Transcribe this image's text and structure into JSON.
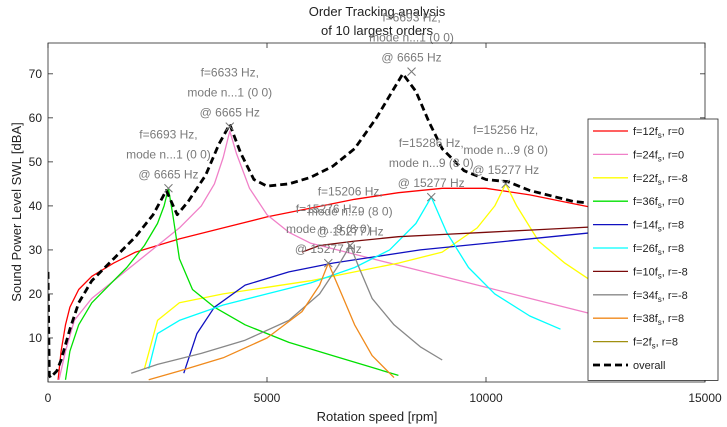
{
  "chart_data": {
    "type": "line",
    "title_lines": [
      "Order Tracking analysis",
      "of 10 largest orders"
    ],
    "xlabel": "Rotation speed [rpm]",
    "ylabel": "Sound Power Level SWL [dBA]",
    "xlim": [
      0,
      15000
    ],
    "ylim": [
      0,
      77
    ],
    "xticks": [
      0,
      5000,
      10000,
      15000
    ],
    "yticks": [
      10,
      20,
      30,
      40,
      50,
      60,
      70
    ],
    "xtick_labels": [
      "0",
      "5000",
      "10000",
      "15000"
    ],
    "ytick_labels": [
      "10",
      "20",
      "30",
      "40",
      "50",
      "60",
      "70"
    ],
    "legend_position": "right",
    "series": [
      {
        "name": "f=12f_s, r=0",
        "label_main": "f=12f",
        "label_sub": "s",
        "label_tail": ", r=0",
        "color": "#ff0000",
        "x": [
          230,
          300,
          400,
          500,
          700,
          1000,
          1500,
          2000,
          3000,
          4000,
          5000,
          6000,
          7000,
          8000,
          9000,
          10000,
          11000,
          12000,
          13000,
          14000,
          15000
        ],
        "y": [
          0.5,
          7,
          13,
          17,
          21,
          24,
          27,
          29.5,
          32.5,
          35,
          37.5,
          39.5,
          41.5,
          43,
          44,
          44,
          42.5,
          40.5,
          38.5,
          37.5,
          37
        ]
      },
      {
        "name": "f=24f_s, r=0",
        "label_main": "f=24f",
        "label_sub": "s",
        "label_tail": ", r=0",
        "color": "#f080c8",
        "x": [
          250,
          400,
          600,
          1000,
          1500,
          2000,
          2500,
          3000,
          3500,
          3800,
          4000,
          4150,
          4300,
          4600,
          5000,
          5500,
          6000,
          7000,
          8000,
          9000,
          10000,
          11000,
          12000,
          13000,
          14000
        ],
        "y": [
          0.5,
          7,
          14,
          19,
          23,
          27,
          31,
          35,
          40,
          45,
          51,
          57,
          52,
          44,
          38,
          34,
          31.5,
          29,
          26.5,
          24,
          21.5,
          19,
          16.5,
          14,
          12
        ]
      },
      {
        "name": "f=22f_s, r=-8",
        "label_main": "f=22f",
        "label_sub": "s",
        "label_tail": ", r=-8",
        "color": "#ffff00",
        "x": [
          2200,
          2500,
          3000,
          4000,
          5000,
          6000,
          7000,
          8000,
          9000,
          9800,
          10200,
          10450,
          10700,
          11200,
          11800,
          12400
        ],
        "y": [
          3,
          14,
          18,
          20,
          21.5,
          23,
          25,
          27,
          29.5,
          35,
          40,
          45,
          40,
          32,
          27,
          23
        ]
      },
      {
        "name": "f=36f_s, r=0",
        "label_main": "f=36f",
        "label_sub": "s",
        "label_tail": ", r=0",
        "color": "#00e000",
        "x": [
          400,
          500,
          700,
          1000,
          1400,
          1800,
          2200,
          2500,
          2650,
          2750,
          2850,
          3000,
          3300,
          3800,
          4500,
          5500,
          6500,
          7500,
          8000
        ],
        "y": [
          0.5,
          7,
          13,
          18,
          22,
          26,
          31,
          36,
          40,
          44,
          38,
          28,
          21,
          17,
          13,
          9,
          6,
          3,
          1.5
        ]
      },
      {
        "name": "f=14f_s, r=8",
        "label_main": "f=14f",
        "label_sub": "s",
        "label_tail": ", r=8",
        "color": "#1010c0",
        "x": [
          3100,
          3400,
          3800,
          4500,
          5500,
          6500,
          7500,
          8500,
          9500,
          10500,
          11500,
          12500,
          13500,
          14500,
          15000
        ],
        "y": [
          2,
          11,
          17,
          22,
          25,
          27,
          28.5,
          30,
          31,
          32,
          33,
          34,
          35,
          36,
          36.5
        ]
      },
      {
        "name": "f=26f_s, r=8",
        "label_main": "f=26f",
        "label_sub": "s",
        "label_tail": ", r=8",
        "color": "#00ffff",
        "x": [
          2300,
          2500,
          3000,
          4000,
          5000,
          6000,
          7000,
          7800,
          8400,
          8750,
          9100,
          9600,
          10200,
          11000,
          11700
        ],
        "y": [
          3,
          11,
          14,
          17.5,
          20,
          22.5,
          26,
          30,
          36,
          42,
          34,
          26,
          20,
          15,
          12
        ]
      },
      {
        "name": "f=10f_s, r=-8",
        "label_main": "f=10f",
        "label_sub": "s",
        "label_tail": ", r=-8",
        "color": "#7a0a0a",
        "x": [
          5800,
          6200,
          7000,
          8000,
          9000,
          10000,
          11000,
          12000,
          13000,
          14000,
          15000
        ],
        "y": [
          29.5,
          31,
          32,
          33,
          33.5,
          34,
          34.5,
          35,
          35.5,
          36.5,
          37.5
        ]
      },
      {
        "name": "f=34f_s, r=-8",
        "label_main": "f=34f",
        "label_sub": "s",
        "label_tail": ", r=-8",
        "color": "#888888",
        "x": [
          1900,
          2500,
          3500,
          4500,
          5500,
          6200,
          6600,
          6900,
          7100,
          7400,
          7900,
          8500,
          9000
        ],
        "y": [
          2,
          4,
          6.5,
          9.5,
          14,
          20,
          26,
          31,
          26,
          19,
          13,
          8,
          5
        ]
      },
      {
        "name": "f=38f_s, r=8",
        "label_main": "f=38f",
        "label_sub": "s",
        "label_tail": ", r=8",
        "color": "#f08a1c",
        "x": [
          2300,
          3000,
          4000,
          5000,
          5800,
          6200,
          6400,
          6700,
          7000,
          7400,
          7900
        ],
        "y": [
          0.5,
          2.5,
          5.5,
          10,
          16,
          22,
          27,
          20,
          13,
          6,
          1
        ]
      },
      {
        "name": "f=2f_s, r=8",
        "label_main": "f=2f",
        "label_sub": "s",
        "label_tail": ", r=8",
        "color": "#a09010",
        "x": [
          13800,
          14200,
          14600,
          15000
        ],
        "y": [
          1,
          3.5,
          6,
          8.5
        ]
      },
      {
        "name": "overall",
        "label_main": "overall",
        "label_sub": "",
        "label_tail": "",
        "color": "#000000",
        "dashed": true,
        "x": [
          0,
          30,
          60,
          100,
          150,
          200,
          300,
          500,
          700,
          1000,
          1500,
          2000,
          2400,
          2700,
          2950,
          3200,
          3600,
          3900,
          4150,
          4400,
          4700,
          5000,
          5500,
          6000,
          6500,
          7000,
          7500,
          7800,
          8100,
          8400,
          8700,
          9000,
          9500,
          10000,
          10500,
          11000,
          12000,
          13000,
          14000,
          14500,
          15000
        ],
        "y": [
          25,
          1.5,
          1,
          1.5,
          2,
          2.5,
          5,
          12,
          18,
          23,
          28,
          33,
          38,
          43.5,
          38,
          41,
          47,
          54,
          58.5,
          52,
          46,
          44.5,
          45,
          46.5,
          49,
          53,
          60,
          65,
          70,
          66,
          59,
          53,
          48,
          46,
          45.5,
          43.5,
          41,
          40,
          40.5,
          42,
          44
        ]
      }
    ],
    "annotations": [
      {
        "lines": [
          "f=6693 Hz,",
          "mode n...1 (0  0)",
          "@ 6665 Hz"
        ],
        "x": 8300,
        "y": 70.5
      },
      {
        "lines": [
          "f=6633 Hz,",
          "mode n...1 (0  0)",
          "@ 6665 Hz"
        ],
        "x": 4150,
        "y": 58
      },
      {
        "lines": [
          "f=6693 Hz,",
          "mode n...1 (0  0)",
          "@ 6665 Hz"
        ],
        "x": 2750,
        "y": 44
      },
      {
        "lines": [
          "f=15256 Hz,",
          "mode n...9 (8  0)",
          "@ 15277 Hz"
        ],
        "x": 10450,
        "y": 45
      },
      {
        "lines": [
          "f=15286 Hz,",
          "mode n...9 (8  0)",
          "@ 15277 Hz"
        ],
        "x": 8750,
        "y": 42
      },
      {
        "lines": [
          "f=15206 Hz,",
          "mode n...9 (8  0)",
          "@ 15277 Hz"
        ],
        "x": 6900,
        "y": 31
      },
      {
        "lines": [
          "f=15276 Hz,",
          "mode n...9 (8  0)",
          "@ 15277 Hz"
        ],
        "x": 6400,
        "y": 27
      }
    ]
  }
}
